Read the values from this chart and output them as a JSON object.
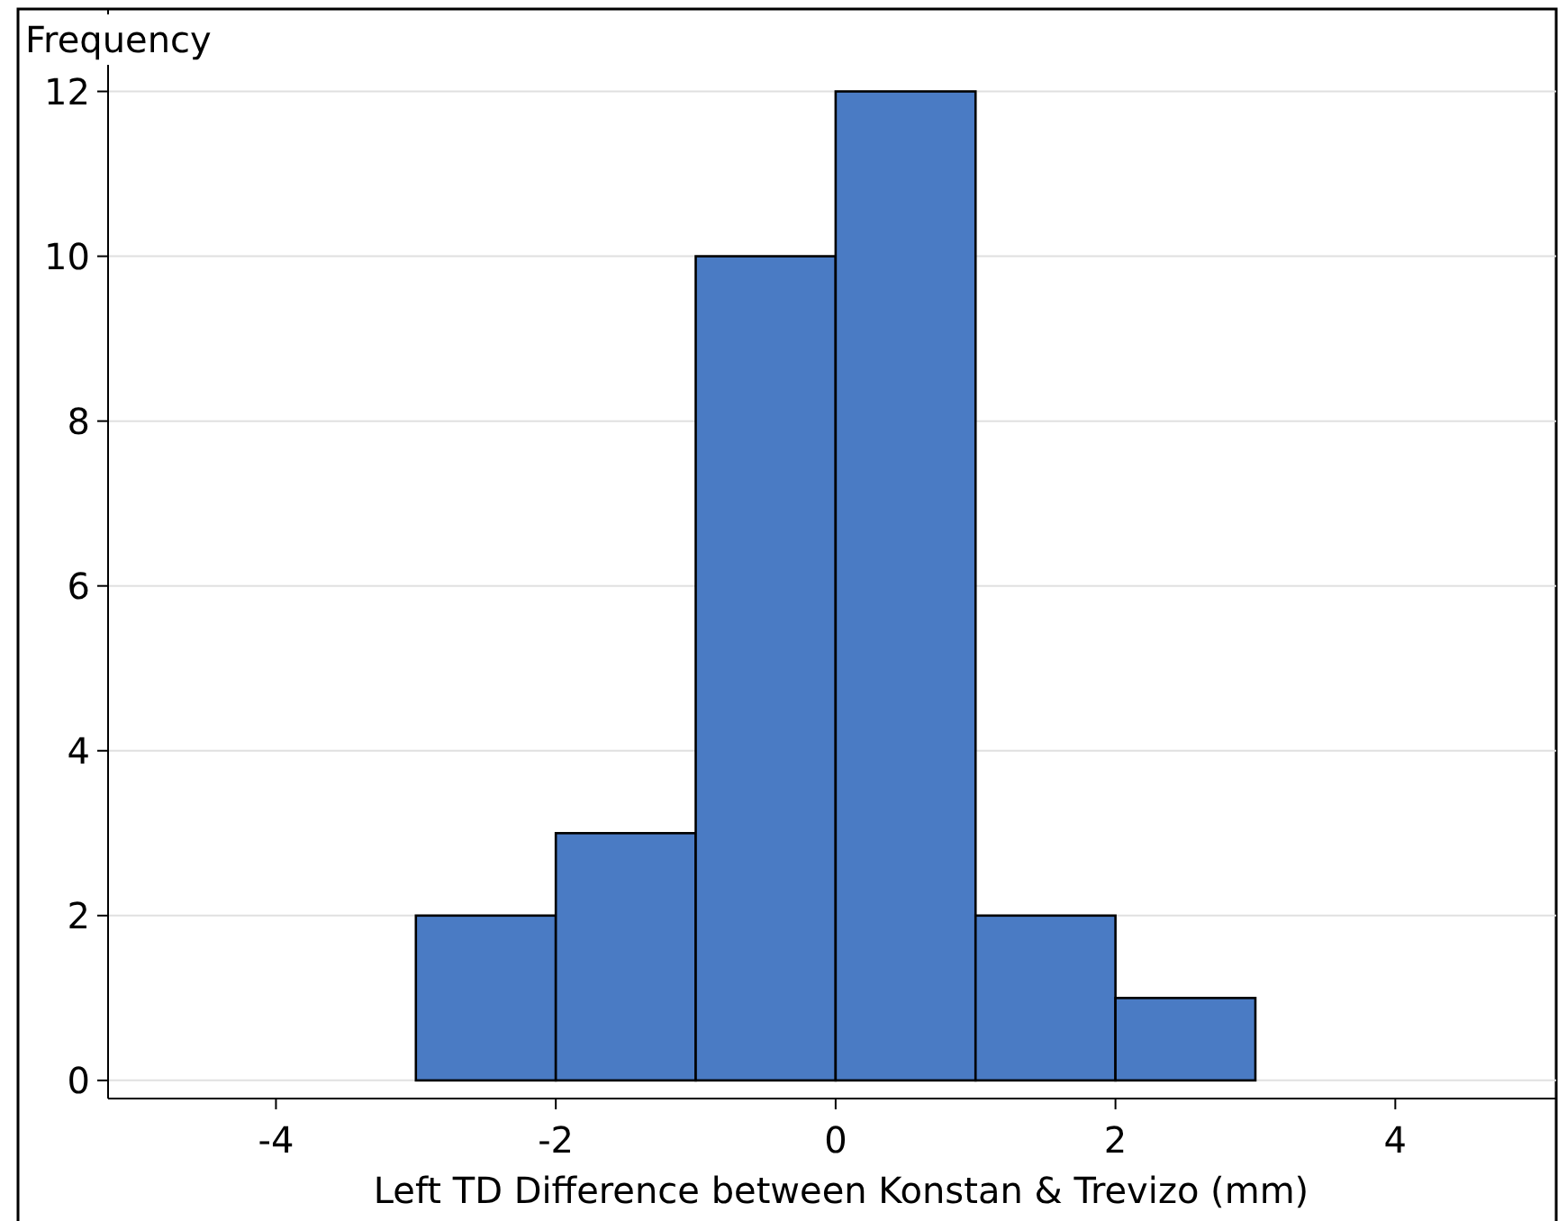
{
  "chart_data": {
    "type": "histogram",
    "ylabel": "Frequency",
    "xlabel": "Left TD Difference between Konstan & Trevizo (mm)",
    "bins": [
      -3,
      -2,
      -1,
      0,
      1,
      2,
      3
    ],
    "values": [
      2,
      3,
      10,
      12,
      2,
      1
    ],
    "color": "#4a7bc4",
    "xlim": [
      -5.2,
      5.15
    ],
    "xticks": [
      -4,
      -2,
      0,
      2,
      4
    ],
    "ylim": [
      -0.22,
      13
    ],
    "yticks": [
      0,
      2,
      4,
      6,
      8,
      10,
      12
    ],
    "grid": "y"
  }
}
